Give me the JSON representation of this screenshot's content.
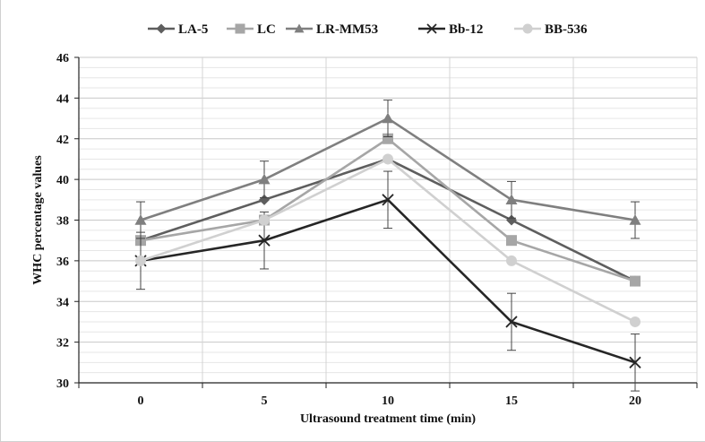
{
  "chart_data": {
    "type": "line",
    "title": "",
    "xlabel": "Ultrasound treatment time (min)",
    "ylabel": "WHC percentage values",
    "x": [
      0,
      5,
      10,
      15,
      20
    ],
    "xticks": [
      "0",
      "5",
      "10",
      "15",
      "20"
    ],
    "ylim": [
      30,
      46
    ],
    "yticks": [
      "30",
      "32",
      "34",
      "36",
      "38",
      "40",
      "42",
      "44",
      "46"
    ],
    "grid": true,
    "legend_position": "top",
    "series": [
      {
        "name": "LA-5",
        "marker": "diamond",
        "color": "#5e5e5e",
        "values": [
          37,
          39,
          41,
          38,
          35
        ],
        "errors": [
          0,
          0,
          0,
          0,
          0
        ]
      },
      {
        "name": "LC",
        "marker": "square",
        "color": "#a6a6a6",
        "values": [
          37,
          38,
          42,
          37,
          35
        ],
        "errors": [
          0,
          0,
          0,
          0,
          0
        ]
      },
      {
        "name": "LR-MM53",
        "marker": "triangle",
        "color": "#7f7f7f",
        "values": [
          38,
          40,
          43,
          39,
          38
        ],
        "errors": [
          0.9,
          0.9,
          0.9,
          0.9,
          0.9
        ]
      },
      {
        "name": "Bb-12",
        "marker": "x",
        "color": "#262626",
        "values": [
          36,
          37,
          39,
          33,
          31
        ],
        "errors": [
          1.4,
          1.4,
          1.4,
          1.4,
          1.4
        ]
      },
      {
        "name": "BB-536",
        "marker": "circle",
        "color": "#d0d0d0",
        "values": [
          36,
          38,
          41,
          36,
          33
        ],
        "errors": [
          0,
          0,
          0,
          0,
          0
        ]
      }
    ]
  }
}
